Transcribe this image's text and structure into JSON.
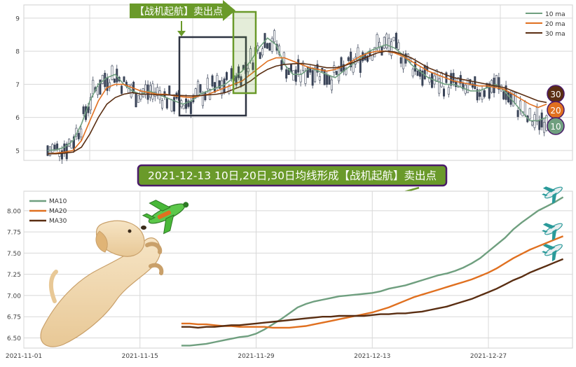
{
  "colors": {
    "ma10": "#6f9f7f",
    "ma20": "#e07020",
    "ma30": "#5a2e12",
    "candle": "#3a4458",
    "callout_bg": "#6a9a2a",
    "callout_border": "#4a1a6a",
    "box_dark": "#2e3442",
    "box_green": "#6a9a2a",
    "grid": "#d8d8d8"
  },
  "top_chart": {
    "callout": "【战机起航】卖出点",
    "legend": [
      "10 ma",
      "20 ma",
      "30 ma"
    ],
    "badges": [
      "30",
      "20",
      "10"
    ],
    "yticks": [
      "5",
      "6",
      "7",
      "8",
      "9"
    ]
  },
  "banner": {
    "text": "2021-12-13 10日,20日,30日均线形成【战机起航】卖出点"
  },
  "chart_data": [
    {
      "type": "line",
      "title": "",
      "note": "Daily candlestick chart with 10/20/30-day moving averages",
      "ylim": [
        4.7,
        9.4
      ],
      "legend_placement": "top-right",
      "grid": true,
      "series": [
        {
          "name": "10 ma",
          "values": [
            5.0,
            5.02,
            5.1,
            5.3,
            5.8,
            6.5,
            7.0,
            7.2,
            7.3,
            7.0,
            6.8,
            6.7,
            6.8,
            6.7,
            6.6,
            6.5,
            6.4,
            6.5,
            6.7,
            6.8,
            6.9,
            7.0,
            7.2,
            7.4,
            7.7,
            8.1,
            8.4,
            8.2,
            7.6,
            7.3,
            7.3,
            7.5,
            7.4,
            7.3,
            7.2,
            7.4,
            7.6,
            7.8,
            8.0,
            8.1,
            8.2,
            8.1,
            7.9,
            7.6,
            7.4,
            7.2,
            7.1,
            7.0,
            7.0,
            6.9,
            6.8,
            6.8,
            6.9,
            7.0,
            6.8,
            6.5,
            6.2,
            5.9,
            5.9,
            6.0
          ]
        },
        {
          "name": "20 ma",
          "values": [
            4.9,
            4.92,
            4.95,
            5.0,
            5.3,
            5.9,
            6.5,
            6.9,
            7.0,
            7.0,
            6.9,
            6.8,
            6.75,
            6.7,
            6.7,
            6.65,
            6.62,
            6.6,
            6.65,
            6.7,
            6.8,
            6.9,
            7.0,
            7.1,
            7.3,
            7.5,
            7.7,
            7.8,
            7.8,
            7.7,
            7.6,
            7.5,
            7.45,
            7.4,
            7.45,
            7.55,
            7.7,
            7.85,
            7.95,
            8.0,
            8.0,
            7.95,
            7.85,
            7.7,
            7.55,
            7.4,
            7.3,
            7.2,
            7.1,
            7.05,
            7.0,
            6.95,
            6.95,
            6.9,
            6.85,
            6.7,
            6.55,
            6.4,
            6.3,
            6.4
          ]
        },
        {
          "name": "30 ma",
          "values": [
            4.9,
            4.9,
            4.92,
            4.95,
            5.1,
            5.5,
            6.0,
            6.4,
            6.6,
            6.7,
            6.75,
            6.7,
            6.7,
            6.68,
            6.68,
            6.67,
            6.66,
            6.65,
            6.66,
            6.68,
            6.7,
            6.75,
            6.85,
            6.95,
            7.1,
            7.3,
            7.45,
            7.55,
            7.6,
            7.62,
            7.63,
            7.6,
            7.55,
            7.5,
            7.5,
            7.55,
            7.65,
            7.75,
            7.85,
            7.95,
            8.0,
            7.98,
            7.9,
            7.8,
            7.65,
            7.5,
            7.4,
            7.3,
            7.2,
            7.15,
            7.1,
            7.05,
            7.0,
            6.95,
            6.9,
            6.8,
            6.7,
            6.6,
            6.5,
            6.45
          ]
        }
      ]
    },
    {
      "type": "line",
      "title": "",
      "categories": [
        "2021-11-01",
        "2021-11-15",
        "2021-11-29",
        "2021-12-13",
        "2021-12-27"
      ],
      "yticks": [
        "6.50",
        "6.75",
        "7.00",
        "7.25",
        "7.50",
        "7.75",
        "8.00"
      ],
      "ylim": [
        6.38,
        8.23
      ],
      "legend_placement": "top-left",
      "grid": true,
      "series": [
        {
          "name": "MA10",
          "x": [
            "2021-11-20",
            "2021-11-21",
            "2021-11-22",
            "2021-11-23",
            "2021-11-24",
            "2021-11-25",
            "2021-11-26",
            "2021-11-27",
            "2021-11-28",
            "2021-11-29",
            "2021-11-30",
            "2021-12-01",
            "2021-12-02",
            "2021-12-03",
            "2021-12-04",
            "2021-12-05",
            "2021-12-06",
            "2021-12-07",
            "2021-12-08",
            "2021-12-09",
            "2021-12-10",
            "2021-12-11",
            "2021-12-12",
            "2021-12-13",
            "2021-12-14",
            "2021-12-15",
            "2021-12-16",
            "2021-12-17",
            "2021-12-18",
            "2021-12-19",
            "2021-12-20",
            "2021-12-21",
            "2021-12-22",
            "2021-12-23",
            "2021-12-24",
            "2021-12-25",
            "2021-12-26",
            "2021-12-27",
            "2021-12-28",
            "2021-12-29",
            "2021-12-30",
            "2021-12-31",
            "2022-01-01",
            "2022-01-02",
            "2022-01-03",
            "2022-01-04",
            "2022-01-05"
          ],
          "values": [
            6.41,
            6.41,
            6.42,
            6.43,
            6.45,
            6.47,
            6.49,
            6.51,
            6.52,
            6.55,
            6.6,
            6.66,
            6.72,
            6.79,
            6.86,
            6.9,
            6.93,
            6.95,
            6.97,
            6.99,
            7.0,
            7.01,
            7.02,
            7.03,
            7.05,
            7.08,
            7.1,
            7.12,
            7.15,
            7.18,
            7.21,
            7.24,
            7.26,
            7.29,
            7.33,
            7.38,
            7.44,
            7.52,
            7.6,
            7.68,
            7.78,
            7.86,
            7.93,
            8.0,
            8.05,
            8.1,
            8.16
          ]
        },
        {
          "name": "MA20",
          "x": [
            "2021-11-20",
            "2021-11-21",
            "2021-11-22",
            "2021-11-23",
            "2021-11-24",
            "2021-11-25",
            "2021-11-26",
            "2021-11-27",
            "2021-11-28",
            "2021-11-29",
            "2021-11-30",
            "2021-12-01",
            "2021-12-02",
            "2021-12-03",
            "2021-12-04",
            "2021-12-05",
            "2021-12-06",
            "2021-12-07",
            "2021-12-08",
            "2021-12-09",
            "2021-12-10",
            "2021-12-11",
            "2021-12-12",
            "2021-12-13",
            "2021-12-14",
            "2021-12-15",
            "2021-12-16",
            "2021-12-17",
            "2021-12-18",
            "2021-12-19",
            "2021-12-20",
            "2021-12-21",
            "2021-12-22",
            "2021-12-23",
            "2021-12-24",
            "2021-12-25",
            "2021-12-26",
            "2021-12-27",
            "2021-12-28",
            "2021-12-29",
            "2021-12-30",
            "2021-12-31",
            "2022-01-01",
            "2022-01-02",
            "2022-01-03",
            "2022-01-04",
            "2022-01-05"
          ],
          "values": [
            6.67,
            6.67,
            6.66,
            6.66,
            6.65,
            6.64,
            6.64,
            6.63,
            6.63,
            6.63,
            6.63,
            6.62,
            6.62,
            6.62,
            6.63,
            6.64,
            6.66,
            6.68,
            6.7,
            6.72,
            6.74,
            6.76,
            6.78,
            6.8,
            6.83,
            6.86,
            6.9,
            6.94,
            6.98,
            7.01,
            7.04,
            7.07,
            7.1,
            7.13,
            7.16,
            7.19,
            7.23,
            7.27,
            7.32,
            7.38,
            7.44,
            7.49,
            7.54,
            7.58,
            7.62,
            7.66,
            7.7
          ]
        },
        {
          "name": "MA30",
          "x": [
            "2021-11-20",
            "2021-11-21",
            "2021-11-22",
            "2021-11-23",
            "2021-11-24",
            "2021-11-25",
            "2021-11-26",
            "2021-11-27",
            "2021-11-28",
            "2021-11-29",
            "2021-11-30",
            "2021-12-01",
            "2021-12-02",
            "2021-12-03",
            "2021-12-04",
            "2021-12-05",
            "2021-12-06",
            "2021-12-07",
            "2021-12-08",
            "2021-12-09",
            "2021-12-10",
            "2021-12-11",
            "2021-12-12",
            "2021-12-13",
            "2021-12-14",
            "2021-12-15",
            "2021-12-16",
            "2021-12-17",
            "2021-12-18",
            "2021-12-19",
            "2021-12-20",
            "2021-12-21",
            "2021-12-22",
            "2021-12-23",
            "2021-12-24",
            "2021-12-25",
            "2021-12-26",
            "2021-12-27",
            "2021-12-28",
            "2021-12-29",
            "2021-12-30",
            "2021-12-31",
            "2022-01-01",
            "2022-01-02",
            "2022-01-03",
            "2022-01-04",
            "2022-01-05"
          ],
          "values": [
            6.63,
            6.63,
            6.62,
            6.63,
            6.63,
            6.64,
            6.65,
            6.65,
            6.66,
            6.67,
            6.68,
            6.69,
            6.7,
            6.71,
            6.72,
            6.73,
            6.74,
            6.75,
            6.75,
            6.76,
            6.76,
            6.76,
            6.76,
            6.77,
            6.78,
            6.78,
            6.79,
            6.79,
            6.8,
            6.81,
            6.83,
            6.85,
            6.87,
            6.9,
            6.93,
            6.96,
            7.0,
            7.04,
            7.08,
            7.13,
            7.18,
            7.22,
            7.27,
            7.31,
            7.35,
            7.39,
            7.43
          ]
        }
      ]
    }
  ]
}
